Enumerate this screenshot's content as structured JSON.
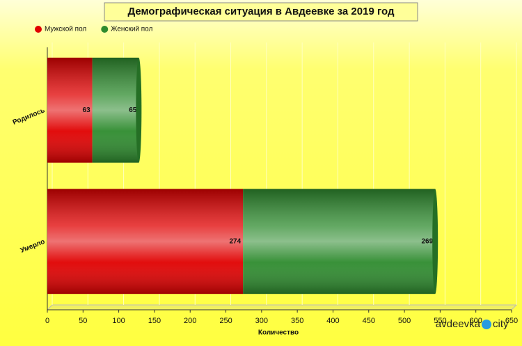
{
  "chart_data": {
    "type": "bar",
    "orientation": "horizontal",
    "stacked": true,
    "title": "Демографическая ситуация в Авдеевке за 2019 год",
    "categories": [
      "Родилось",
      "Умерло"
    ],
    "series": [
      {
        "name": "Мужской пол",
        "color": "#e00000",
        "values": [
          63,
          274
        ]
      },
      {
        "name": "Женский пол",
        "color": "#2e8b2e",
        "values": [
          65,
          269
        ]
      }
    ],
    "xlabel": "Количество",
    "xlim": [
      0,
      650
    ],
    "xticks": [
      0,
      50,
      100,
      150,
      200,
      250,
      300,
      350,
      400,
      450,
      500,
      550,
      600,
      650
    ],
    "grid": true,
    "legend": "top-left",
    "watermark": [
      "avdeevka",
      "city"
    ]
  }
}
